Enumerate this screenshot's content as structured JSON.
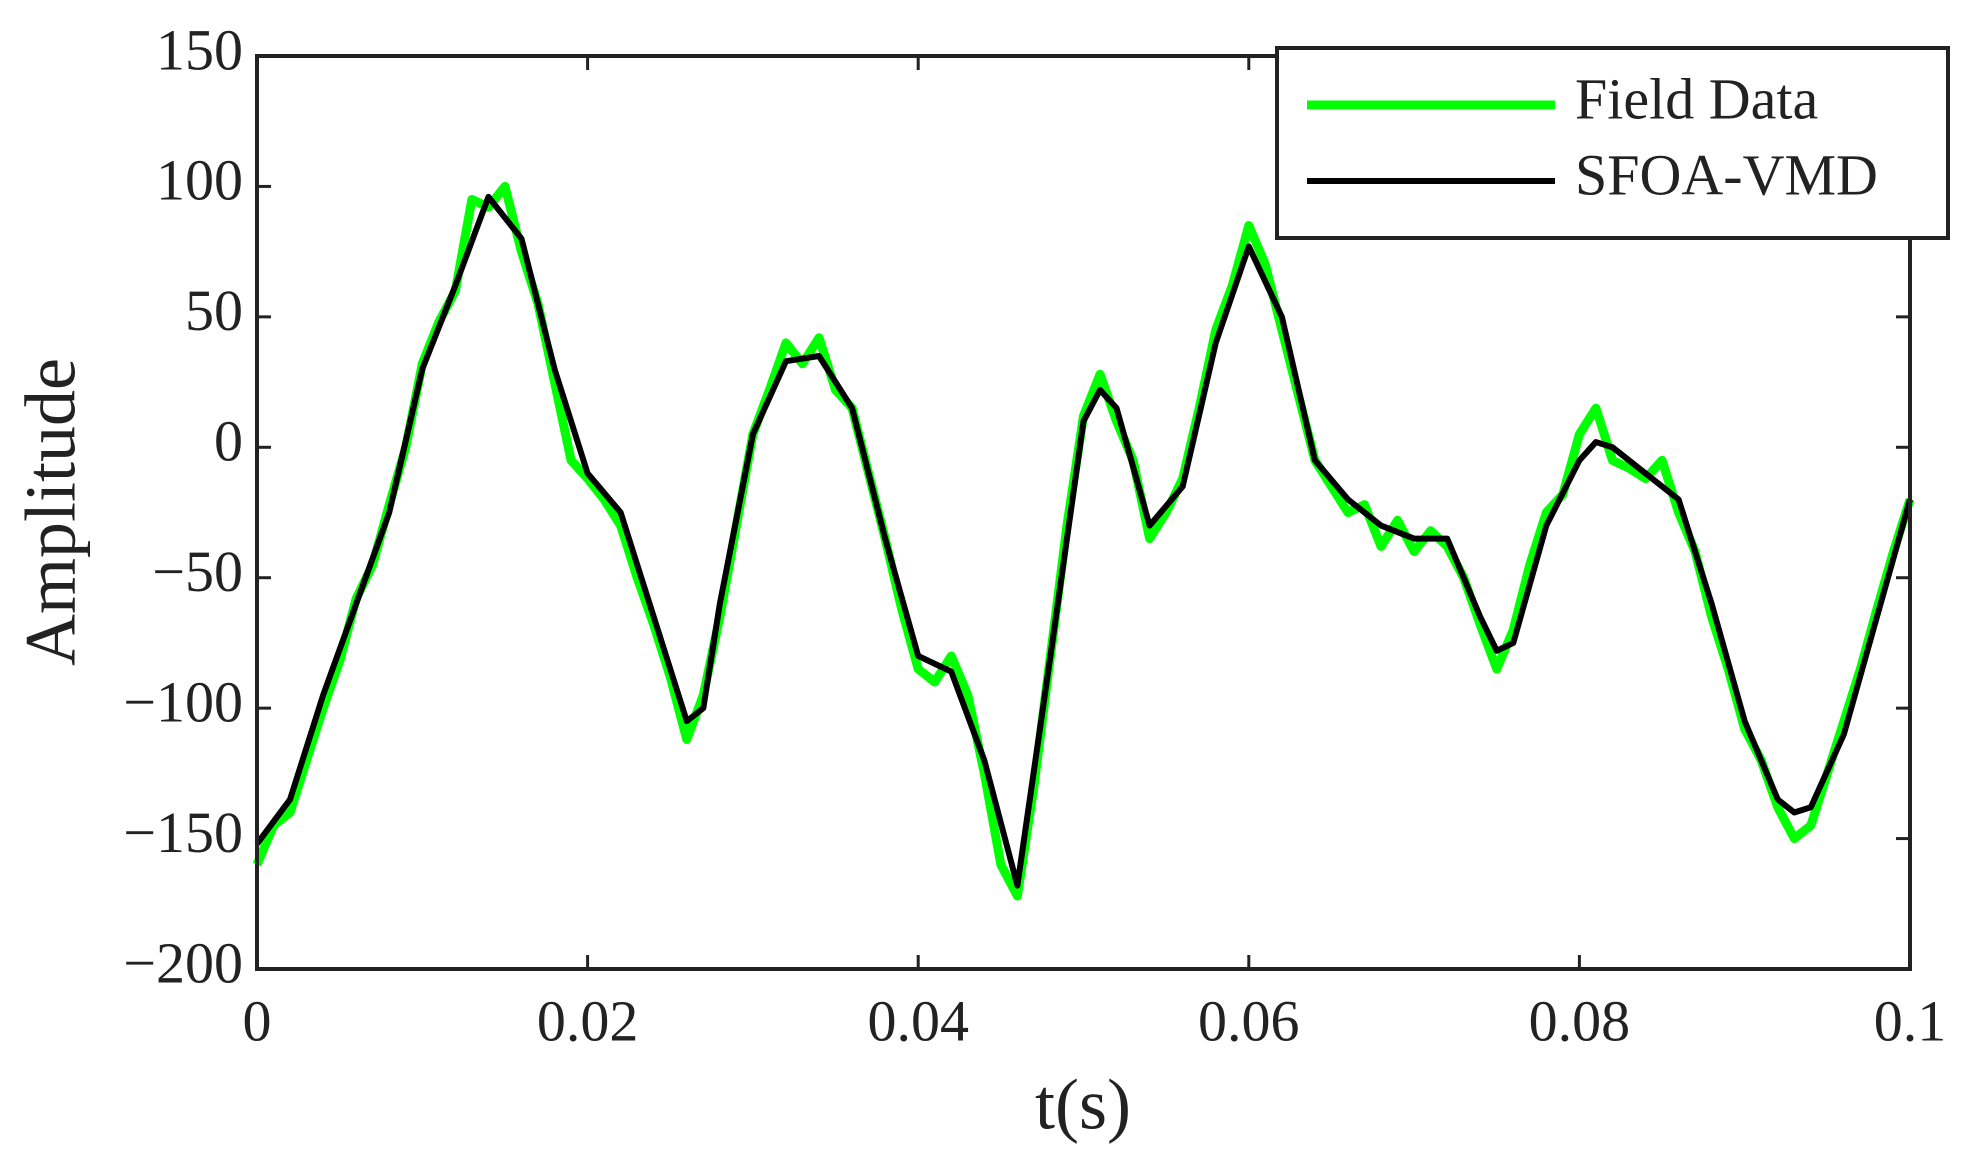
{
  "chart_data": {
    "type": "line",
    "x_label": "t(s)",
    "y_label": "Amplitude",
    "xlim": [
      0,
      0.1
    ],
    "xticks": [
      0,
      0.02,
      0.04,
      0.06,
      0.08,
      0.1
    ],
    "ylim": [
      -200,
      150
    ],
    "yticks": [
      {
        "value": -200,
        "label": "−200"
      },
      {
        "value": -150,
        "label": "−150"
      },
      {
        "value": -100,
        "label": "−100"
      },
      {
        "value": -50,
        "label": "−50"
      },
      0,
      50,
      100,
      150
    ],
    "legend": "upper right",
    "series": [
      {
        "name": "Field Data",
        "color": "#00ff00",
        "x": [
          0,
          0.001,
          0.002,
          0.003,
          0.004,
          0.005,
          0.006,
          0.007,
          0.008,
          0.009,
          0.01,
          0.011,
          0.012,
          0.013,
          0.014,
          0.015,
          0.016,
          0.017,
          0.018,
          0.019,
          0.02,
          0.021,
          0.022,
          0.023,
          0.024,
          0.025,
          0.026,
          0.027,
          0.028,
          0.029,
          0.03,
          0.031,
          0.032,
          0.033,
          0.034,
          0.035,
          0.036,
          0.037,
          0.038,
          0.039,
          0.04,
          0.041,
          0.042,
          0.043,
          0.044,
          0.045,
          0.046,
          0.047,
          0.048,
          0.049,
          0.05,
          0.051,
          0.052,
          0.053,
          0.054,
          0.055,
          0.056,
          0.057,
          0.058,
          0.059,
          0.06,
          0.061,
          0.062,
          0.063,
          0.064,
          0.065,
          0.066,
          0.067,
          0.068,
          0.069,
          0.07,
          0.071,
          0.072,
          0.073,
          0.074,
          0.075,
          0.076,
          0.077,
          0.078,
          0.079,
          0.08,
          0.081,
          0.082,
          0.083,
          0.084,
          0.085,
          0.086,
          0.087,
          0.088,
          0.089,
          0.09,
          0.091,
          0.092,
          0.093,
          0.094,
          0.095,
          0.096,
          0.097,
          0.098,
          0.099,
          0.1
        ],
        "values": [
          -160,
          -145,
          -140,
          -120,
          -100,
          -82,
          -58,
          -45,
          -22,
          0,
          32,
          48,
          60,
          95,
          92,
          100,
          75,
          55,
          25,
          -5,
          -12,
          -20,
          -30,
          -50,
          -68,
          -88,
          -112,
          -95,
          -65,
          -30,
          5,
          22,
          40,
          32,
          42,
          22,
          15,
          -10,
          -35,
          -62,
          -85,
          -90,
          -80,
          -95,
          -125,
          -160,
          -172,
          -130,
          -80,
          -30,
          12,
          28,
          10,
          -5,
          -35,
          -25,
          -12,
          15,
          45,
          62,
          85,
          70,
          45,
          20,
          -5,
          -15,
          -25,
          -22,
          -38,
          -28,
          -40,
          -32,
          -38,
          -50,
          -68,
          -85,
          -70,
          -45,
          -25,
          -18,
          5,
          15,
          -5,
          -8,
          -12,
          -5,
          -25,
          -40,
          -65,
          -85,
          -108,
          -120,
          -138,
          -150,
          -145,
          -125,
          -105,
          -85,
          -62,
          -40,
          -20
        ]
      },
      {
        "name": "SFOA-VMD",
        "color": "#000000",
        "x": [
          0,
          0.002,
          0.004,
          0.006,
          0.008,
          0.01,
          0.012,
          0.014,
          0.016,
          0.018,
          0.02,
          0.022,
          0.024,
          0.026,
          0.027,
          0.028,
          0.03,
          0.032,
          0.034,
          0.036,
          0.038,
          0.04,
          0.042,
          0.044,
          0.046,
          0.048,
          0.05,
          0.051,
          0.052,
          0.054,
          0.056,
          0.058,
          0.06,
          0.062,
          0.064,
          0.066,
          0.068,
          0.07,
          0.072,
          0.074,
          0.075,
          0.076,
          0.078,
          0.08,
          0.081,
          0.082,
          0.084,
          0.086,
          0.088,
          0.09,
          0.092,
          0.093,
          0.094,
          0.096,
          0.098,
          0.1
        ],
        "values": [
          -152,
          -135,
          -95,
          -60,
          -25,
          30,
          62,
          96,
          80,
          30,
          -10,
          -25,
          -65,
          -105,
          -100,
          -60,
          5,
          33,
          35,
          15,
          -35,
          -80,
          -86,
          -120,
          -168,
          -80,
          10,
          22,
          15,
          -30,
          -15,
          40,
          77,
          50,
          -5,
          -20,
          -30,
          -35,
          -35,
          -65,
          -78,
          -75,
          -30,
          -5,
          2,
          0,
          -10,
          -20,
          -60,
          -105,
          -135,
          -140,
          -138,
          -110,
          -65,
          -20
        ]
      }
    ]
  }
}
